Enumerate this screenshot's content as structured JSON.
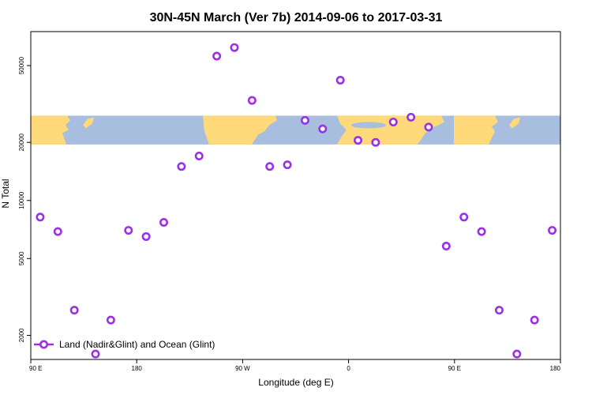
{
  "chart_data": {
    "type": "scatter",
    "title": "30N-45N March (Ver 7b)   2014-09-06 to 2017-03-31",
    "xlabel": "Longitude (deg E)",
    "ylabel": "N Total",
    "y_scale": "log",
    "xlim": [
      90,
      540
    ],
    "ylim": [
      1500,
      75000
    ],
    "x_ticks": [
      {
        "value": 90,
        "label": "90 E"
      },
      {
        "value": 180,
        "label": "180"
      },
      {
        "value": 270,
        "label": "90 W"
      },
      {
        "value": 360,
        "label": "0"
      },
      {
        "value": 450,
        "label": "90 E"
      },
      {
        "value": 540,
        "label": "180"
      }
    ],
    "y_ticks": [
      {
        "value": 2000,
        "label": "2000"
      },
      {
        "value": 5000,
        "label": "5000"
      },
      {
        "value": 10000,
        "label": "10000"
      },
      {
        "value": 20000,
        "label": "20000"
      },
      {
        "value": 50000,
        "label": "50000"
      }
    ],
    "map_band": {
      "lat_range": "30N-45N",
      "y_range": [
        19500,
        27500
      ],
      "land_color": "#ffd97a",
      "ocean_color": "#a8bede"
    },
    "legend": {
      "position": "bottom-left",
      "label": "Land (Nadir&Glint) and Ocean (Glint)"
    },
    "series": [
      {
        "name": "Land (Nadir&Glint) and Ocean (Glint)",
        "color": "#9b30e6",
        "points": [
          {
            "x": 98,
            "y": 8200
          },
          {
            "x": 113,
            "y": 6900
          },
          {
            "x": 127,
            "y": 2700
          },
          {
            "x": 145,
            "y": 1600
          },
          {
            "x": 158,
            "y": 2400
          },
          {
            "x": 173,
            "y": 7000
          },
          {
            "x": 188,
            "y": 6500
          },
          {
            "x": 203,
            "y": 7700
          },
          {
            "x": 218,
            "y": 15000
          },
          {
            "x": 233,
            "y": 17000
          },
          {
            "x": 248,
            "y": 56000
          },
          {
            "x": 263,
            "y": 62000
          },
          {
            "x": 278,
            "y": 33000
          },
          {
            "x": 293,
            "y": 15000
          },
          {
            "x": 308,
            "y": 15300
          },
          {
            "x": 323,
            "y": 26000
          },
          {
            "x": 338,
            "y": 23500
          },
          {
            "x": 353,
            "y": 42000
          },
          {
            "x": 368,
            "y": 20500
          },
          {
            "x": 383,
            "y": 20000
          },
          {
            "x": 398,
            "y": 25500
          },
          {
            "x": 413,
            "y": 27000
          },
          {
            "x": 428,
            "y": 24000
          },
          {
            "x": 443,
            "y": 5800
          },
          {
            "x": 458,
            "y": 8200
          },
          {
            "x": 473,
            "y": 6900
          },
          {
            "x": 488,
            "y": 2700
          },
          {
            "x": 503,
            "y": 1600
          },
          {
            "x": 518,
            "y": 2400
          },
          {
            "x": 533,
            "y": 7000
          }
        ]
      }
    ]
  }
}
